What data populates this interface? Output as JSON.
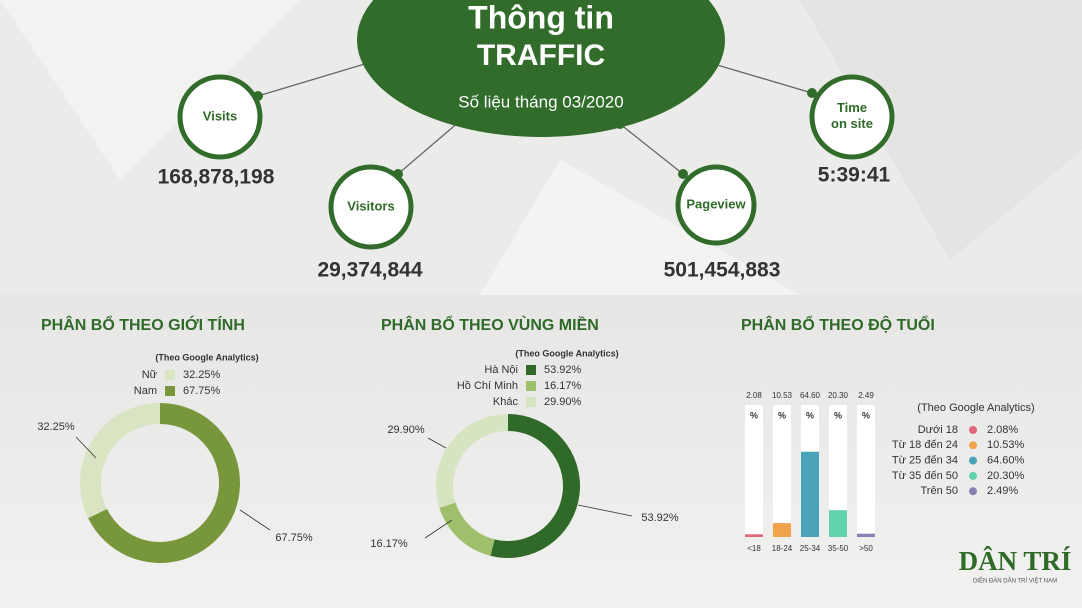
{
  "header": {
    "title_line1": "Thông tin",
    "title_line2": "TRAFFIC",
    "subtitle": "Số liệu tháng 03/2020"
  },
  "stats": [
    {
      "label": "Visits",
      "value": "168,878,198"
    },
    {
      "label": "Visitors",
      "value": "29,374,844"
    },
    {
      "label": "Pageview",
      "value": "501,454,883"
    },
    {
      "label": "Time on site",
      "value": "5:39:41"
    }
  ],
  "chart_data": [
    {
      "type": "donut",
      "title": "PHÂN BỔ THEO GIỚI  TÍNH",
      "subtitle": "(Theo Google Analytics)",
      "categories": [
        "Nữ",
        "Nam"
      ],
      "values": [
        32.25,
        67.75
      ],
      "value_labels": [
        "32.25%",
        "67.75%"
      ],
      "colors": [
        "#d9e4c3",
        "#78963b"
      ],
      "direction": "counterclockwise"
    },
    {
      "type": "donut",
      "title": "PHÂN BỔ THEO VÙNG MIỀN",
      "subtitle": "(Theo Google Analytics)",
      "categories": [
        "Hà Nội",
        "Hồ Chí Minh",
        "Khác"
      ],
      "values": [
        53.92,
        16.17,
        29.9
      ],
      "value_labels": [
        "53.92%",
        "16.17%",
        "29.90%"
      ],
      "colors": [
        "#2f6a29",
        "#a0bf6c",
        "#d7e4c1"
      ],
      "direction": "clockwise"
    },
    {
      "type": "bar",
      "title": "PHÂN BỔ THEO ĐỘ TUỔI",
      "subtitle": "(Theo Google Analytics)",
      "categories": [
        "<18",
        "18-24",
        "25-34",
        "35-50",
        ">50"
      ],
      "legend_labels": [
        "Dưới 18",
        "Từ 18 đến 24",
        "Từ 25 đến 34",
        "Từ 35 đến 50",
        "Trên 50"
      ],
      "values": [
        2.08,
        10.53,
        64.6,
        20.3,
        2.49
      ],
      "value_labels": [
        "2.08",
        "10.53",
        "64.60",
        "20.30",
        "2.49"
      ],
      "legend_value_labels": [
        "2.08%",
        "10.53%",
        "64.60%",
        "20.30%",
        "2.49%"
      ],
      "unit_label": "%",
      "colors": [
        "#e0677a",
        "#f0a24c",
        "#4aa3b6",
        "#62d2aa",
        "#8b80b6"
      ],
      "ylim": [
        0,
        100
      ]
    }
  ],
  "logo": {
    "name": "DÂN TRÍ",
    "tagline": "DIỄN ĐÀN DÂN TRÍ VIỆT NAM"
  }
}
